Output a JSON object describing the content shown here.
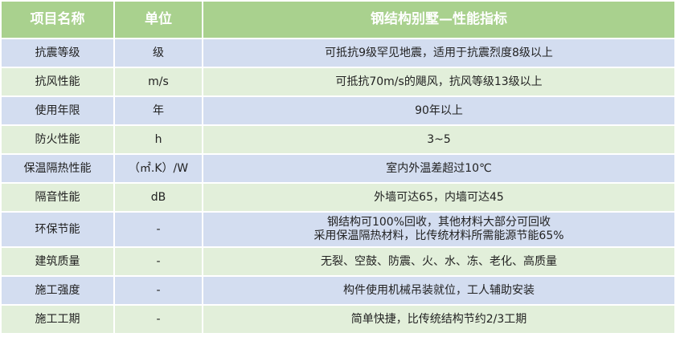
{
  "header": {
    "col1": "项目名称",
    "col2": "单位",
    "col3": "钢结构别墅—性能指标"
  },
  "rows": [
    {
      "name": "抗震等级",
      "unit": "级",
      "value": "可抵抗9级罕见地震，适用于抗震烈度8级以上"
    },
    {
      "name": "抗风性能",
      "unit": "m/s",
      "value": "可抵抗70m/s的飓风，抗风等级13级以上"
    },
    {
      "name": "使用年限",
      "unit": "年",
      "value": "90年以上"
    },
    {
      "name": "防火性能",
      "unit": "h",
      "value": "3~5"
    },
    {
      "name": "保温隔热性能",
      "unit": "（㎡.K）/W",
      "value": "室内外温差超过10℃"
    },
    {
      "name": "隔音性能",
      "unit": "dB",
      "value": "外墙可达65，内墙可达45"
    },
    {
      "name": "环保节能",
      "unit": "-",
      "value": "钢结构可100%回收，其他材料大部分可回收",
      "value2": "采用保温隔热材料，比传统材料所需能源节能65%"
    },
    {
      "name": "建筑质量",
      "unit": "-",
      "value": "无裂、空鼓、防震、火、水、冻、老化、高质量"
    },
    {
      "name": "施工强度",
      "unit": "-",
      "value": "构件使用机械吊装就位，工人辅助安装"
    },
    {
      "name": "施工工期",
      "unit": "-",
      "value": "简单快捷，比传统结构节约2/3工期"
    }
  ],
  "colors": {
    "header": "#a9d18e",
    "row_blue": "#d3ddf0",
    "row_green": "#e2efda"
  }
}
